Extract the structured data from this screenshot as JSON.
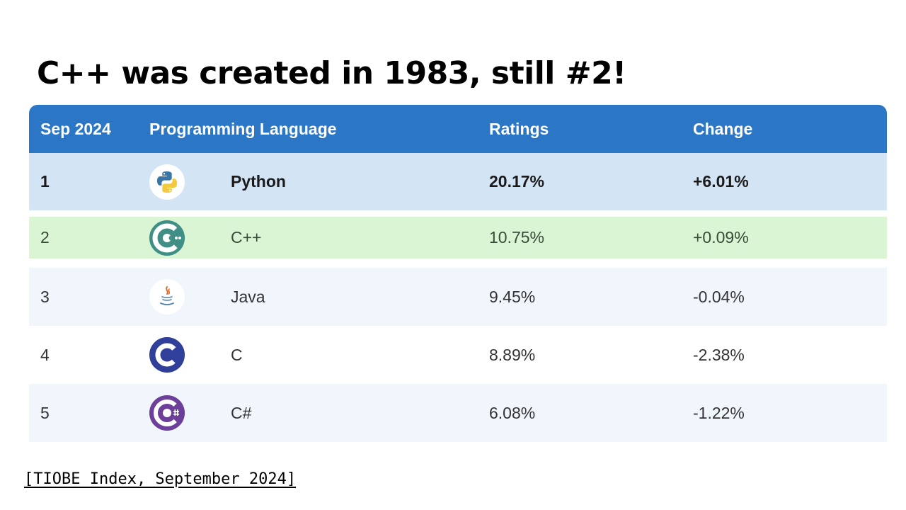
{
  "slide": {
    "title": "C++ was created in 1983, still #2!",
    "source": "[TIOBE Index, September 2024]"
  },
  "table": {
    "headers": {
      "rank": "Sep 2024",
      "language": "Programming Language",
      "ratings": "Ratings",
      "change": "Change"
    },
    "header_color": "#2b77c5",
    "rows": [
      {
        "rank": "1",
        "language": "Python",
        "ratings": "20.17%",
        "change": "+6.01%",
        "icon": "python-logo-icon",
        "background": "#d3e4f5"
      },
      {
        "rank": "2",
        "language": "C++",
        "ratings": "10.75%",
        "change": "+0.09%",
        "icon": "cpp-logo-icon",
        "background": "#d9f5d3"
      },
      {
        "rank": "3",
        "language": "Java",
        "ratings": "9.45%",
        "change": "-0.04%",
        "icon": "java-logo-icon",
        "background": "#f1f6fd"
      },
      {
        "rank": "4",
        "language": "C",
        "ratings": "8.89%",
        "change": "-2.38%",
        "icon": "c-logo-icon",
        "background": "#ffffff"
      },
      {
        "rank": "5",
        "language": "C#",
        "ratings": "6.08%",
        "change": "-1.22%",
        "icon": "csharp-logo-icon",
        "background": "#f1f6fd"
      }
    ]
  }
}
